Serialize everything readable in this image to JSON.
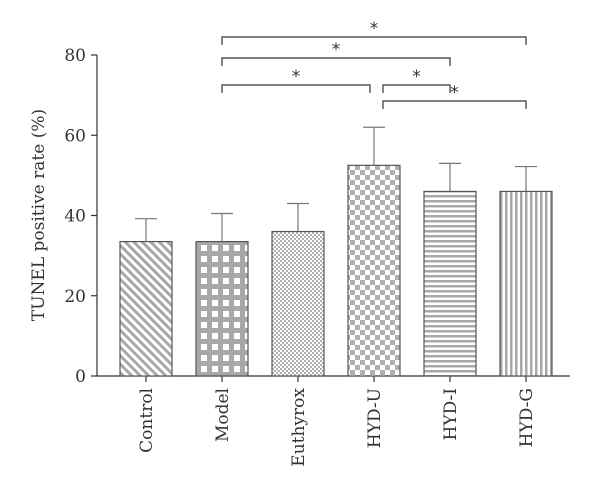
{
  "chart_data": {
    "type": "bar",
    "ylabel": "TUNEL positive rate (%)",
    "xlabel": "",
    "ylim": [
      0,
      80
    ],
    "yticks": [
      0,
      20,
      40,
      60,
      80
    ],
    "categories": [
      "Control",
      "Model",
      "Euthyrox",
      "HYD-U",
      "HYD-I",
      "HYD-G"
    ],
    "values": [
      33.5,
      33.5,
      36,
      52.5,
      46,
      46
    ],
    "errors": [
      5.7,
      7,
      7,
      9.5,
      7,
      6.2
    ],
    "patterns": [
      "diagonal-stripes",
      "grid",
      "fine-checker",
      "coarse-checker",
      "horizontal-stripes",
      "vertical-stripes"
    ],
    "significance": [
      {
        "from": "Model",
        "to": "HYD-G",
        "label": "*"
      },
      {
        "from": "Model",
        "to": "HYD-I",
        "label": "*"
      },
      {
        "from": "Model",
        "to": "HYD-U",
        "label": "*"
      },
      {
        "from": "HYD-U",
        "to": "HYD-I",
        "label": "*"
      },
      {
        "from": "HYD-U",
        "to": "HYD-G",
        "label": "*"
      }
    ],
    "grid": false,
    "colors": {
      "bar_fill": "#b3b3b3",
      "bar_light": "#ffffff",
      "axis": "#333333"
    }
  }
}
